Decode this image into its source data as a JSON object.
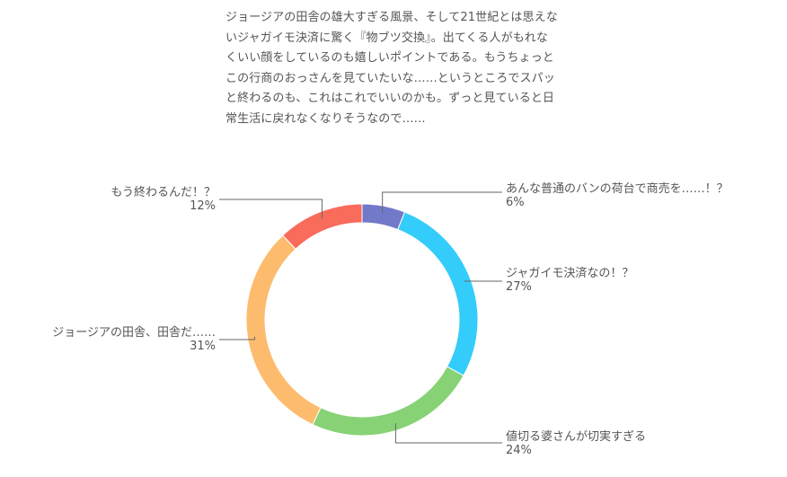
{
  "intro_text": "ジョージアの田舎の雄大すぎる風景、そして21世紀とは思えないジャガイモ決済に驚く『物ブツ交換』。出てくる人がもれなくいい顔をしているのも嬉しいポイントである。もうちょっとこの行商のおっさんを見ていたいな……というところでスパッと終わるのも、これはこれでいいのかも。ずっと見ていると日常生活に戻れなくなりそうなので……",
  "chart_data": {
    "type": "pie",
    "donut": true,
    "categories": [
      "あんな普通のバンの荷台で商売を……！？",
      "ジャガイモ決済なの！？",
      "値切る婆さんが切実すぎる",
      "ジョージアの田舎、田舎だ……",
      "もう終わるんだ！？"
    ],
    "values": [
      6,
      27,
      24,
      31,
      12
    ],
    "value_labels": [
      "6%",
      "27%",
      "24%",
      "31%",
      "12%"
    ],
    "colors": [
      "#7279c9",
      "#34ccfa",
      "#86d275",
      "#fdbb6e",
      "#f96b5b"
    ],
    "legend": "none"
  }
}
